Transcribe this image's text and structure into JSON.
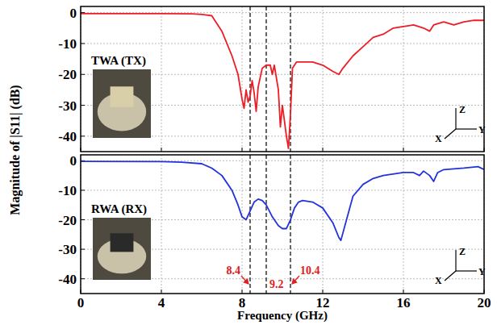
{
  "chart_data": [
    {
      "type": "line",
      "ylabel": "Magnitude of |S11| (dB)",
      "inset_label": "TWA (TX)",
      "axis_triad": [
        "Z",
        "Y",
        "X"
      ],
      "x": [
        0,
        2,
        4,
        5.5,
        6,
        6.5,
        7,
        7.5,
        7.8,
        8.0,
        8.1,
        8.2,
        8.3,
        8.4,
        8.5,
        8.6,
        8.7,
        8.8,
        8.9,
        9.0,
        9.2,
        9.4,
        9.5,
        9.6,
        9.8,
        9.9,
        10.0,
        10.1,
        10.2,
        10.3,
        10.4,
        10.5,
        10.7,
        11,
        11.5,
        12,
        12.5,
        12.8,
        13,
        13.5,
        14,
        14.5,
        15,
        15.5,
        16,
        16.5,
        17,
        17.3,
        17.5,
        18,
        18.5,
        19,
        19.5,
        20
      ],
      "series": [
        {
          "name": "TWA",
          "color": "#ee1c25",
          "values": [
            -0.3,
            -0.3,
            -0.3,
            -0.4,
            -0.6,
            -1,
            -6,
            -14,
            -20,
            -28,
            -31,
            -25,
            -29,
            -27,
            -22,
            -26,
            -32,
            -24,
            -21,
            -18,
            -17,
            -17,
            -20,
            -17,
            -25,
            -37,
            -30,
            -35,
            -40,
            -44,
            -33,
            -18,
            -16,
            -16,
            -16,
            -17,
            -19,
            -20,
            -18,
            -14,
            -11,
            -8,
            -7,
            -5,
            -4.5,
            -4,
            -5,
            -6,
            -4,
            -3,
            -4,
            -3,
            -2.5,
            -2.5
          ]
        }
      ],
      "xlim": [
        0,
        20
      ],
      "xticks": [
        0,
        4,
        8,
        12,
        16,
        20
      ],
      "ylim": [
        -45,
        2
      ],
      "yticks": [
        0,
        -10,
        -20,
        -30,
        -40
      ],
      "vlines": [
        8.4,
        9.2,
        10.4
      ],
      "grid": true,
      "tick_labels": "y"
    },
    {
      "type": "line",
      "xlabel": "Frequency (GHz)",
      "inset_label": "RWA (RX)",
      "axis_triad": [
        "Z",
        "Y",
        "X"
      ],
      "x": [
        0,
        4,
        5,
        6,
        6.5,
        7,
        7.5,
        7.8,
        8.0,
        8.2,
        8.4,
        8.6,
        8.8,
        9.0,
        9.2,
        9.5,
        9.8,
        10.0,
        10.2,
        10.4,
        10.6,
        10.8,
        11,
        11.5,
        12,
        12.5,
        12.8,
        12.9,
        13.1,
        13.5,
        14,
        14.5,
        15,
        16,
        16.5,
        16.8,
        17,
        17.3,
        17.5,
        17.7,
        18,
        19,
        19.7,
        20
      ],
      "series": [
        {
          "name": "RWA",
          "color": "#2233dd",
          "values": [
            -0.2,
            -0.3,
            -0.5,
            -1,
            -2.5,
            -5,
            -10,
            -15,
            -19,
            -20,
            -17,
            -14,
            -13,
            -13.5,
            -15,
            -19,
            -22,
            -23,
            -23,
            -20,
            -16,
            -14,
            -13.5,
            -14,
            -16,
            -21,
            -26,
            -27,
            -22,
            -12,
            -8,
            -6,
            -5,
            -4,
            -4,
            -5,
            -3.5,
            -5,
            -7,
            -4,
            -3,
            -2.5,
            -2,
            -3
          ]
        }
      ],
      "xlim": [
        0,
        20
      ],
      "xticks": [
        0,
        4,
        8,
        12,
        16,
        20
      ],
      "ylim": [
        -45,
        2
      ],
      "yticks": [
        0,
        -10,
        -20,
        -30,
        -40
      ],
      "vlines": [
        8.4,
        9.2,
        10.4
      ],
      "grid": true
    }
  ]
}
